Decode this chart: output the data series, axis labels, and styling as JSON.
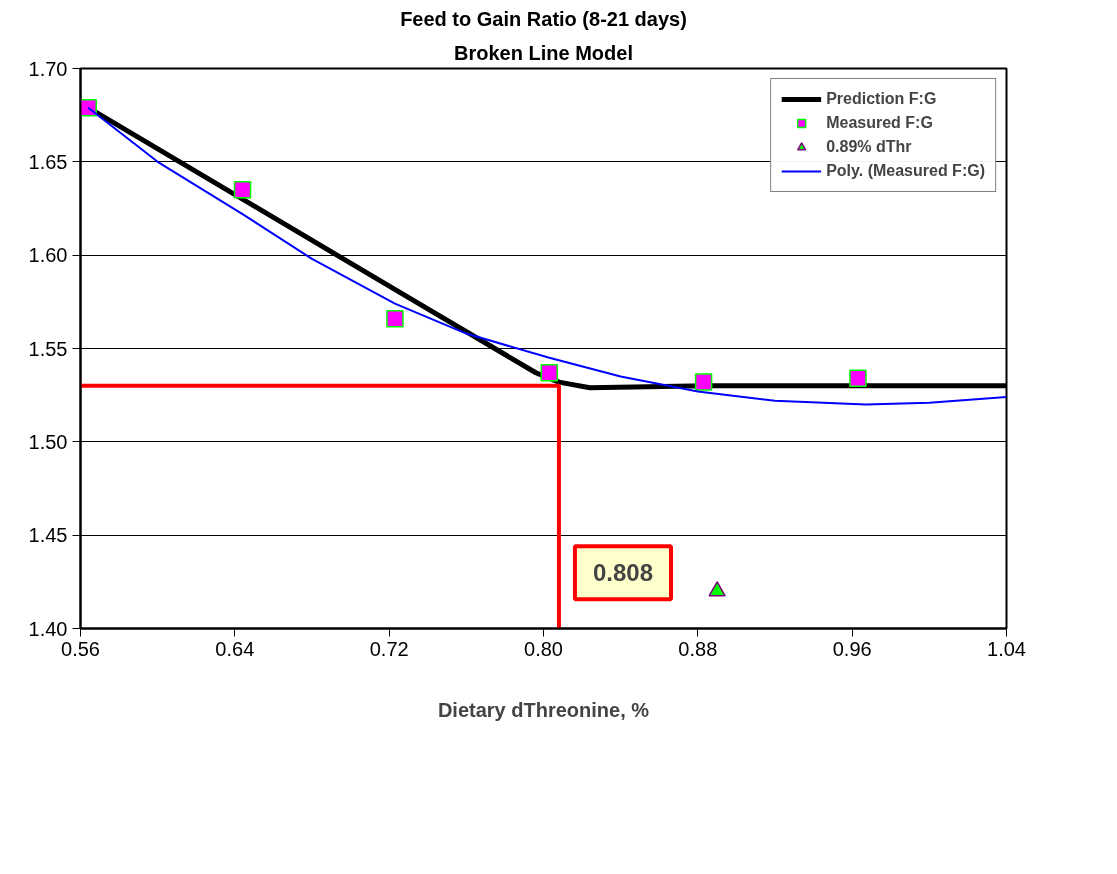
{
  "chart_data": {
    "type": "line",
    "title": "Feed to Gain Ratio (8-21 days)",
    "subtitle": "Broken Line Model",
    "xlabel": "Dietary dThreonine, %",
    "xlim": [
      0.56,
      1.04
    ],
    "xticks": [
      {
        "value": 0.56,
        "label": "0.56"
      },
      {
        "value": 0.64,
        "label": "0.64"
      },
      {
        "value": 0.72,
        "label": "0.72"
      },
      {
        "value": 0.8,
        "label": "0.80"
      },
      {
        "value": 0.88,
        "label": "0.88"
      },
      {
        "value": 0.96,
        "label": "0.96"
      },
      {
        "value": 1.04,
        "label": "1.04"
      }
    ],
    "ylim": [
      1.4,
      1.7
    ],
    "yticks": [
      {
        "value": 1.4,
        "label": "1.40"
      },
      {
        "value": 1.45,
        "label": "1.45"
      },
      {
        "value": 1.5,
        "label": "1.50"
      },
      {
        "value": 1.55,
        "label": "1.55"
      },
      {
        "value": 1.6,
        "label": "1.60"
      },
      {
        "value": 1.65,
        "label": "1.65"
      },
      {
        "value": 1.7,
        "label": "1.70"
      }
    ],
    "grid": "y",
    "legend": "top right",
    "series": [
      {
        "type": "line",
        "name": "Prediction F:G",
        "color": "#000000",
        "marker": "none",
        "x": [
          0.564,
          0.644,
          0.724,
          0.796,
          0.808,
          0.824,
          0.884,
          0.964,
          1.04
        ],
        "values": [
          1.679,
          1.63,
          1.581,
          1.537,
          1.532,
          1.529,
          1.53,
          1.53,
          1.53
        ]
      },
      {
        "type": "scatter",
        "name": "Measured F:G",
        "color": "#ff00ff",
        "marker": "square",
        "x": [
          0.564,
          0.644,
          0.723,
          0.803,
          0.883,
          0.963
        ],
        "values": [
          1.679,
          1.635,
          1.566,
          1.537,
          1.532,
          1.534
        ]
      },
      {
        "type": "line",
        "name": "0.89% dThr",
        "color": "#00ff00",
        "marker": "triangle",
        "x": [
          0.89
        ],
        "values": [
          1.42
        ]
      },
      {
        "type": "line",
        "name": "Poly. (Measured F:G)",
        "color": "#0000ff",
        "marker": "none",
        "x": [
          0.564,
          0.6,
          0.644,
          0.68,
          0.723,
          0.76,
          0.803,
          0.84,
          0.88,
          0.92,
          0.967,
          1.0,
          1.04
        ],
        "values": [
          1.679,
          1.65,
          1.622,
          1.598,
          1.574,
          1.558,
          1.545,
          1.535,
          1.527,
          1.522,
          1.52,
          1.521,
          1.524
        ]
      },
      {
        "type": "line",
        "color": "#ff0000",
        "marker": "none",
        "x": [
          0.56,
          0.808,
          0.808
        ],
        "values": [
          1.53,
          1.53,
          1.4
        ]
      }
    ],
    "annotations": [
      {
        "text": "0.808",
        "x": 0.808,
        "y": 1.42
      }
    ]
  }
}
